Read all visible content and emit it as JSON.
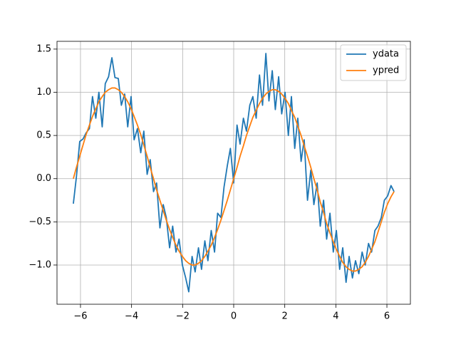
{
  "chart_data": {
    "type": "line",
    "x": [
      -6.28,
      -6.16,
      -6.03,
      -5.9,
      -5.78,
      -5.65,
      -5.53,
      -5.4,
      -5.28,
      -5.15,
      -5.03,
      -4.9,
      -4.77,
      -4.65,
      -4.52,
      -4.4,
      -4.27,
      -4.15,
      -4.02,
      -3.9,
      -3.77,
      -3.64,
      -3.52,
      -3.39,
      -3.27,
      -3.14,
      -3.02,
      -2.89,
      -2.76,
      -2.64,
      -2.51,
      -2.39,
      -2.26,
      -2.14,
      -2.01,
      -1.88,
      -1.76,
      -1.63,
      -1.51,
      -1.38,
      -1.26,
      -1.13,
      -1.01,
      -0.88,
      -0.75,
      -0.63,
      -0.5,
      -0.38,
      -0.25,
      -0.13,
      0,
      0.13,
      0.25,
      0.38,
      0.5,
      0.63,
      0.75,
      0.88,
      1.01,
      1.13,
      1.26,
      1.38,
      1.51,
      1.63,
      1.76,
      1.88,
      2.01,
      2.14,
      2.26,
      2.39,
      2.51,
      2.64,
      2.76,
      2.89,
      3.02,
      3.14,
      3.27,
      3.39,
      3.52,
      3.64,
      3.77,
      3.9,
      4.02,
      4.15,
      4.27,
      4.4,
      4.52,
      4.65,
      4.77,
      4.9,
      5.03,
      5.15,
      5.28,
      5.4,
      5.53,
      5.65,
      5.78,
      5.9,
      6.03,
      6.16,
      6.28
    ],
    "series": [
      {
        "name": "ydata",
        "color": "#1f77b4",
        "values": [
          -0.29,
          0.02,
          0.43,
          0.46,
          0.53,
          0.58,
          0.95,
          0.7,
          1.0,
          0.6,
          1.1,
          1.18,
          1.4,
          1.17,
          1.16,
          0.85,
          0.98,
          0.6,
          0.95,
          0.45,
          0.58,
          0.3,
          0.55,
          0.05,
          0.22,
          -0.15,
          -0.05,
          -0.57,
          -0.3,
          -0.45,
          -0.8,
          -0.55,
          -0.85,
          -0.7,
          -1.0,
          -1.15,
          -1.31,
          -0.9,
          -1.08,
          -0.8,
          -1.05,
          -0.72,
          -0.95,
          -0.6,
          -0.85,
          -0.4,
          -0.45,
          -0.1,
          0.15,
          0.35,
          -0.05,
          0.62,
          0.4,
          0.7,
          0.55,
          0.85,
          0.95,
          0.7,
          1.2,
          0.85,
          1.45,
          0.9,
          1.25,
          0.8,
          1.18,
          0.75,
          1.0,
          0.5,
          0.95,
          0.35,
          0.7,
          0.2,
          0.45,
          -0.25,
          0.1,
          -0.3,
          -0.05,
          -0.55,
          -0.25,
          -0.7,
          -0.4,
          -0.85,
          -0.6,
          -1.05,
          -0.8,
          -1.2,
          -0.9,
          -1.15,
          -0.95,
          -1.1,
          -0.85,
          -1.0,
          -0.75,
          -0.85,
          -0.6,
          -0.55,
          -0.45,
          -0.25,
          -0.2,
          -0.08,
          -0.15
        ]
      },
      {
        "name": "ypred",
        "color": "#ff7f0e",
        "values": [
          0,
          0.13,
          0.26,
          0.39,
          0.51,
          0.62,
          0.72,
          0.81,
          0.89,
          0.95,
          1.0,
          1.03,
          1.05,
          1.05,
          1.03,
          1.0,
          0.95,
          0.89,
          0.81,
          0.72,
          0.62,
          0.51,
          0.39,
          0.26,
          0.13,
          0,
          -0.13,
          -0.25,
          -0.37,
          -0.48,
          -0.59,
          -0.68,
          -0.77,
          -0.84,
          -0.9,
          -0.95,
          -0.98,
          -1.0,
          -1.0,
          -0.98,
          -0.95,
          -0.9,
          -0.84,
          -0.77,
          -0.68,
          -0.59,
          -0.48,
          -0.37,
          -0.25,
          -0.13,
          0,
          0.13,
          0.26,
          0.38,
          0.5,
          0.61,
          0.71,
          0.79,
          0.87,
          0.93,
          0.98,
          1.01,
          1.03,
          1.03,
          1.01,
          0.98,
          0.93,
          0.87,
          0.79,
          0.71,
          0.61,
          0.5,
          0.38,
          0.26,
          0.13,
          0,
          -0.13,
          -0.27,
          -0.39,
          -0.52,
          -0.63,
          -0.73,
          -0.82,
          -0.9,
          -0.97,
          -1.02,
          -1.05,
          -1.07,
          -1.07,
          -1.05,
          -1.02,
          -0.97,
          -0.9,
          -0.82,
          -0.73,
          -0.62,
          -0.5,
          -0.39,
          -0.29,
          -0.21,
          -0.15
        ]
      }
    ],
    "xlim": [
      -6.92,
      6.92
    ],
    "xticks": [
      {
        "value": -6,
        "label": "−6"
      },
      {
        "value": -4,
        "label": "−4"
      },
      {
        "value": -2,
        "label": "−2"
      },
      0,
      2,
      4,
      6
    ],
    "ylim": [
      -1.454,
      1.59
    ],
    "yticks": [
      {
        "value": -1.0,
        "label": "−1.0"
      },
      {
        "value": -0.5,
        "label": "−0.5"
      },
      {
        "value": 0.0,
        "label": "0.0"
      },
      {
        "value": 0.5,
        "label": "0.5"
      },
      {
        "value": 1.0,
        "label": "1.0"
      },
      {
        "value": 1.5,
        "label": "1.5"
      }
    ],
    "grid": true,
    "legend": "upper right"
  }
}
